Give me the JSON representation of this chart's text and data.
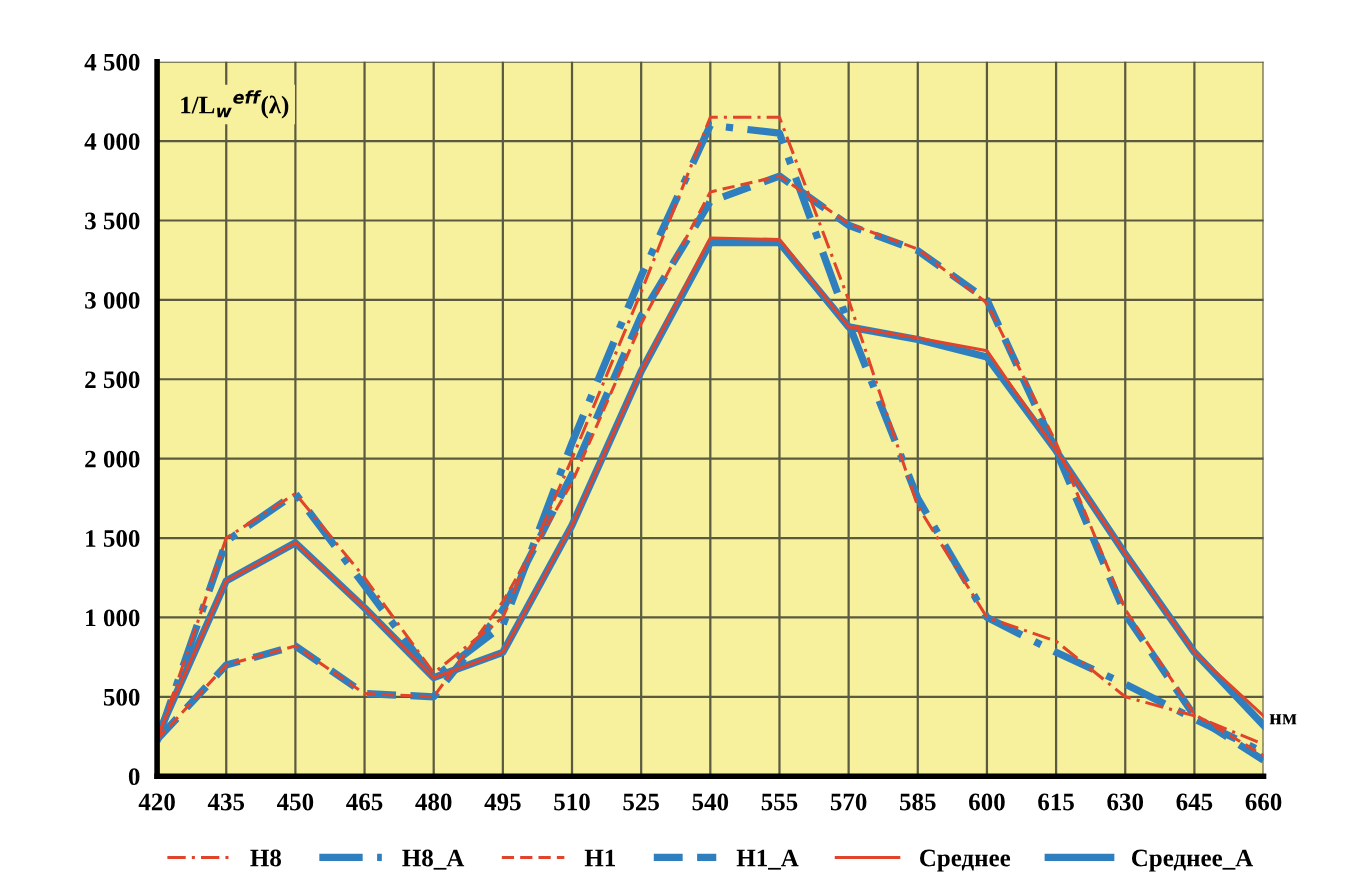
{
  "chart_data": {
    "type": "line",
    "ylabel": "1/L$_{w}$$^{eff}$(λ)",
    "xlabel": "нм",
    "x": [
      420,
      435,
      450,
      465,
      480,
      495,
      510,
      525,
      540,
      555,
      570,
      585,
      600,
      615,
      630,
      645,
      660
    ],
    "xlim": [
      420,
      660
    ],
    "xticks": [
      420,
      435,
      450,
      465,
      480,
      495,
      510,
      525,
      540,
      555,
      570,
      585,
      600,
      615,
      630,
      645,
      660
    ],
    "ylim": [
      0,
      4500
    ],
    "yticks": [
      0,
      500,
      {
        "value": 1000,
        "label": "1 000"
      },
      {
        "value": 1500,
        "label": "1 500"
      },
      {
        "value": 2000,
        "label": "2 000"
      },
      {
        "value": 2500,
        "label": "2 500"
      },
      {
        "value": 3000,
        "label": "3 000"
      },
      {
        "value": 3500,
        "label": "3 500"
      },
      {
        "value": 4000,
        "label": "4 000"
      },
      {
        "value": 4500,
        "label": "4 500"
      }
    ],
    "grid": true,
    "legend": "bottom",
    "series": [
      {
        "name": "H8",
        "color": "#e0442a",
        "line_style": "dashdot",
        "values": [
          220,
          1500,
          1780,
          1250,
          650,
          1000,
          2000,
          3050,
          4150,
          4150,
          3000,
          1700,
          1000,
          850,
          500,
          380,
          200
        ]
      },
      {
        "name": "H8_A",
        "color": "#2f7fbf",
        "line_style": "dashdot",
        "values": [
          220,
          1480,
          1780,
          1200,
          620,
          950,
          2100,
          3150,
          4100,
          4050,
          2850,
          1750,
          1000,
          780,
          580,
          360,
          150
        ]
      },
      {
        "name": "H1",
        "color": "#e0442a",
        "line_style": "dashed",
        "values": [
          230,
          700,
          820,
          520,
          500,
          1100,
          1850,
          2850,
          3680,
          3780,
          3480,
          3320,
          2980,
          2100,
          1050,
          390,
          130
        ]
      },
      {
        "name": "H1_A",
        "color": "#2f7fbf",
        "line_style": "dashed",
        "values": [
          230,
          700,
          820,
          520,
          500,
          1050,
          1900,
          2900,
          3620,
          3780,
          3470,
          3310,
          3000,
          2050,
          1020,
          380,
          100
        ]
      },
      {
        "name": "Среднее",
        "color": "#e0442a",
        "line_style": "solid",
        "values": [
          250,
          1230,
          1470,
          1060,
          620,
          780,
          1580,
          2550,
          3390,
          3380,
          2830,
          2760,
          2680,
          2050,
          1400,
          780,
          380
        ]
      },
      {
        "name": "Среднее_A",
        "color": "#2f7fbf",
        "line_style": "solid",
        "values": [
          250,
          1230,
          1470,
          1060,
          620,
          780,
          1580,
          2550,
          3360,
          3360,
          2830,
          2750,
          2640,
          2050,
          1400,
          780,
          320
        ]
      }
    ]
  }
}
